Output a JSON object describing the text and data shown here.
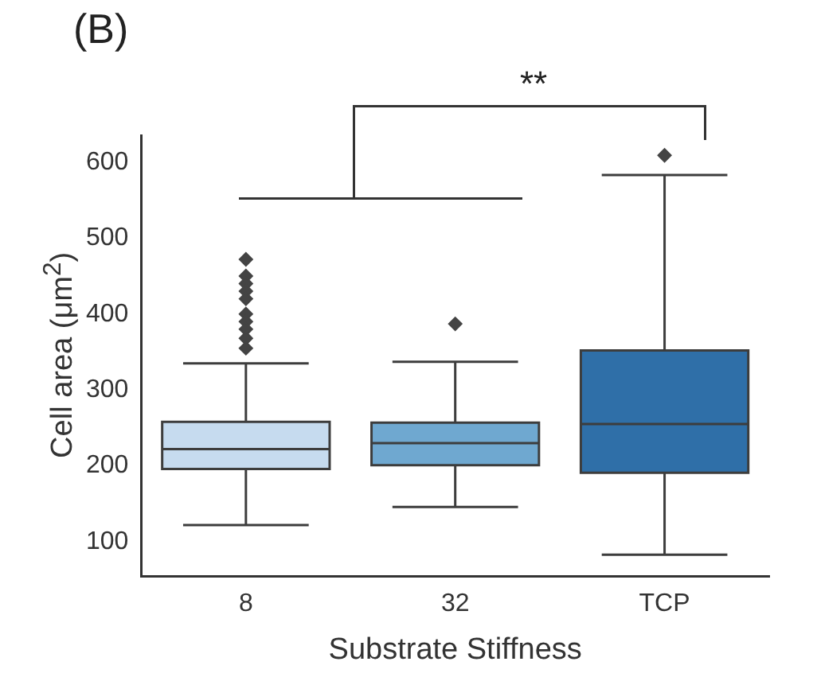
{
  "chart_data": {
    "type": "box",
    "title": "(B)",
    "xlabel": "Substrate Stiffness",
    "ylabel": "Cell area (μm$^{2}$)",
    "categories": [
      "8",
      "32",
      "TCP"
    ],
    "colors": [
      "#c6dbef",
      "#6fa8d0",
      "#2f6fa8"
    ],
    "boxes": [
      {
        "low": 122,
        "q1": 196,
        "median": 222,
        "q3": 258,
        "high": 335,
        "outliers": [
          472,
          450,
          440,
          430,
          420,
          400,
          390,
          380,
          368,
          355
        ]
      },
      {
        "low": 146,
        "q1": 201,
        "median": 230,
        "q3": 257,
        "high": 337,
        "outliers": [
          387
        ]
      },
      {
        "low": 83,
        "q1": 191,
        "median": 255,
        "q3": 352,
        "high": 583,
        "outliers": [
          609
        ]
      }
    ],
    "ylim": [
      55,
      635
    ],
    "yticks": [
      100,
      200,
      300,
      400,
      500,
      600
    ],
    "grid": false,
    "legend": false,
    "marker": "diamond",
    "annotations": [
      "**"
    ]
  }
}
